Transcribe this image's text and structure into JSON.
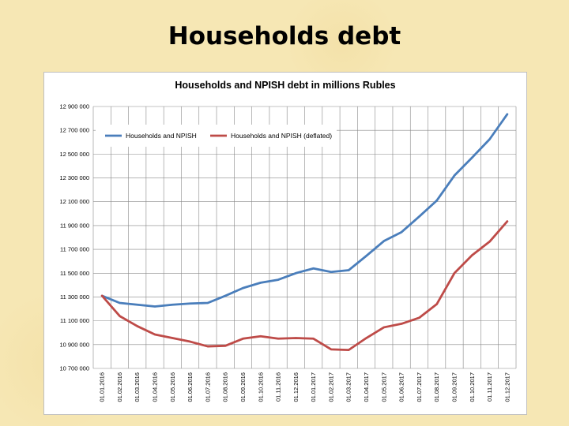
{
  "slide": {
    "title": "Households debt"
  },
  "chart_data": {
    "type": "line",
    "title": "Households and NPISH debt in millions Rubles",
    "xlabel": "",
    "ylabel": "",
    "ylim": [
      10700000,
      12900000
    ],
    "yticks": [
      "10 700 000",
      "10 900 000",
      "11 100 000",
      "11 300 000",
      "11 500 000",
      "11 700 000",
      "11 900 000",
      "12 100 000",
      "12 300 000",
      "12 500 000",
      "12 700 000",
      "12 900 000"
    ],
    "ytick_values": [
      10700000,
      10900000,
      11100000,
      11300000,
      11500000,
      11700000,
      11900000,
      12100000,
      12300000,
      12500000,
      12700000,
      12900000
    ],
    "categories": [
      "01.01.2016",
      "01.02.2016",
      "01.03.2016",
      "01.04.2016",
      "01.05.2016",
      "01.06.2016",
      "01.07.2016",
      "01.08.2016",
      "01.09.2016",
      "01.10.2016",
      "01.11.2016",
      "01.12.2016",
      "01.01.2017",
      "01.02.2017",
      "01.03.2017",
      "01.04.2017",
      "01.05.2017",
      "01.06.2017",
      "01.07.2017",
      "01.08.2017",
      "01.09.2017",
      "01.10.2017",
      "01.11.2017",
      "01.12.2017"
    ],
    "grid": true,
    "legend_position": "top-left",
    "series": [
      {
        "name": "Households and NPISH",
        "color": "#4a7ebb",
        "values": [
          11310000,
          11250000,
          11235000,
          11220000,
          11235000,
          11245000,
          11250000,
          11310000,
          11375000,
          11420000,
          11445000,
          11500000,
          11540000,
          11510000,
          11525000,
          11645000,
          11770000,
          11845000,
          11975000,
          12110000,
          12320000,
          12470000,
          12625000,
          12835000
        ]
      },
      {
        "name": "Households and NPISH (deflated)",
        "color": "#be4b48",
        "values": [
          11310000,
          11140000,
          11055000,
          10985000,
          10955000,
          10925000,
          10885000,
          10890000,
          10950000,
          10970000,
          10950000,
          10955000,
          10950000,
          10860000,
          10855000,
          10955000,
          11045000,
          11075000,
          11125000,
          11240000,
          11500000,
          11650000,
          11765000,
          11935000
        ]
      }
    ]
  }
}
